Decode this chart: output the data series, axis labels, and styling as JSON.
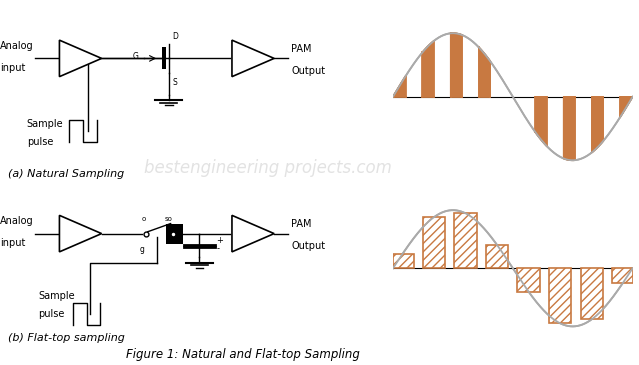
{
  "bg_color": "#ffffff",
  "title": "Figure 1: Natural and Flat-top Sampling",
  "label_a": "(a) Natural Sampling",
  "label_b": "(b) Flat-top sampling",
  "orange": "#C87941",
  "gray_sine": "#aaaaaa",
  "black": "#000000",
  "watermark": "bestengineering projects.com",
  "watermark_color": "#d0d0d0",
  "figsize": [
    6.39,
    3.65
  ],
  "dpi": 100
}
